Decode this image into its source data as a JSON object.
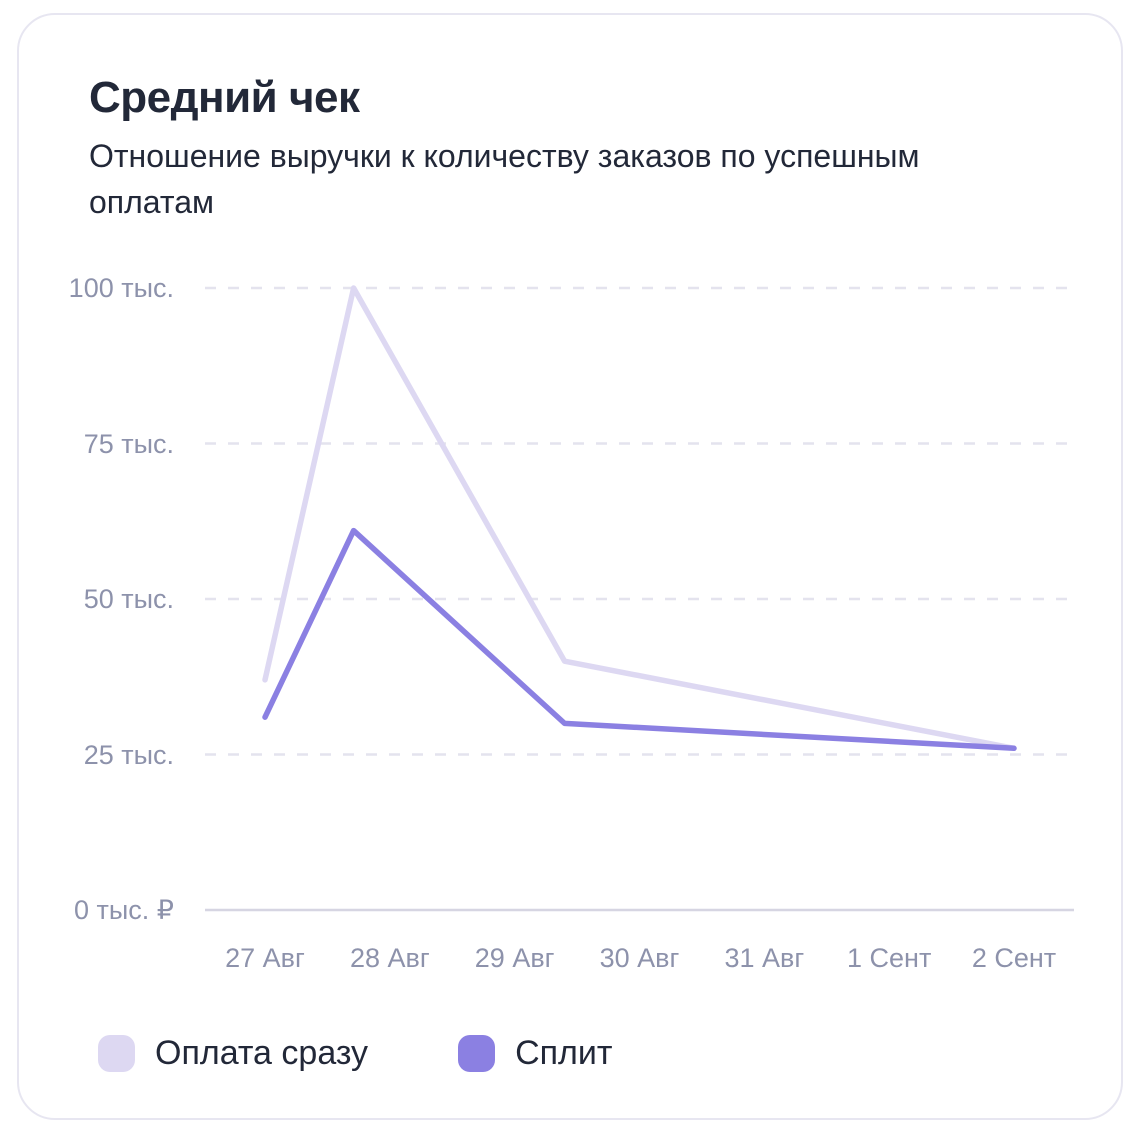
{
  "card": {
    "title": "Средний чек",
    "subtitle": "Отношение выручки к количеству заказов по успешным оплатам"
  },
  "chart_data": {
    "type": "line",
    "title": "Средний чек",
    "subtitle": "Отношение выручки к количеству заказов по успешным оплатам",
    "unit": "тыс. ₽",
    "grid": "horizontal-dashed",
    "legend_position": "bottom-left",
    "ylim": [
      0,
      100
    ],
    "y_ticks": [
      100,
      75,
      50,
      25,
      0
    ],
    "y_tick_labels": [
      "100 тыс.",
      "75 тыс.",
      "50 тыс.",
      "25 тыс.",
      "0 тыс. ₽"
    ],
    "x_range_days": [
      0,
      6
    ],
    "x_tick_labels": [
      "27 Авг",
      "28 Авг",
      "29 Авг",
      "30 Авг",
      "31 Авг",
      "1 Сент",
      "2 Сент"
    ],
    "series": [
      {
        "name": "Оплата сразу",
        "color": "#ddd8f2",
        "points": [
          {
            "x": 0,
            "y": 37
          },
          {
            "x": 0.71,
            "y": 100
          },
          {
            "x": 2.4,
            "y": 40
          },
          {
            "x": 6,
            "y": 26
          }
        ]
      },
      {
        "name": "Сплит",
        "color": "#8b80e2",
        "points": [
          {
            "x": 0,
            "y": 31
          },
          {
            "x": 0.71,
            "y": 61
          },
          {
            "x": 2.4,
            "y": 30
          },
          {
            "x": 6,
            "y": 26
          }
        ]
      }
    ],
    "colors": {
      "grid_dashed": "#e4e3ee",
      "axis_baseline": "#d6d5e2",
      "tick_text": "#8d92ab",
      "text": "#222838"
    }
  }
}
